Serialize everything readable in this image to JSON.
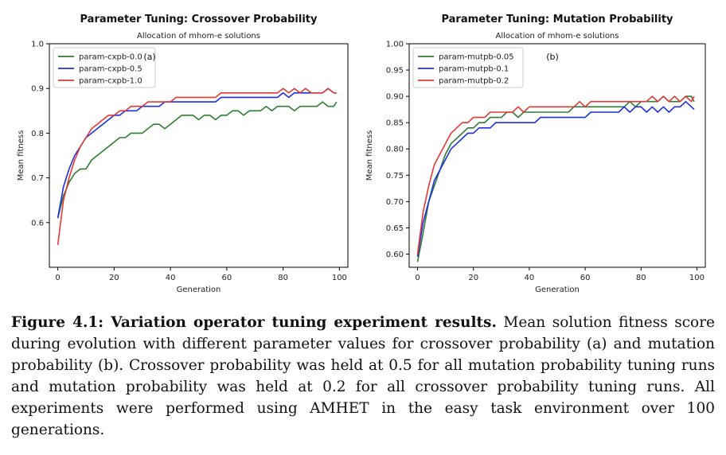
{
  "chart_data": [
    {
      "type": "line",
      "title": "Parameter Tuning: Crossover Probability",
      "subtitle": "Allocation of mhom-e solutions",
      "panel_label": "(a)",
      "xlabel": "Generation",
      "ylabel": "Mean fitness",
      "xlim": [
        -3,
        103
      ],
      "ylim": [
        0.5,
        1.0
      ],
      "xticks": [
        0,
        20,
        40,
        60,
        80,
        100
      ],
      "yticks": [
        0.6,
        0.7,
        0.8,
        0.9,
        1.0
      ],
      "ytick_labels": [
        "0.6",
        "0.7",
        "0.8",
        "0.9",
        "1.0"
      ],
      "legend": "upper-left",
      "grid": false,
      "series": [
        {
          "name": "param-cxpb-0.0",
          "color": "#2e7d32",
          "x": [
            0,
            2,
            4,
            6,
            8,
            10,
            12,
            14,
            16,
            18,
            20,
            22,
            24,
            26,
            28,
            30,
            32,
            34,
            36,
            38,
            40,
            42,
            44,
            46,
            48,
            50,
            52,
            54,
            56,
            58,
            60,
            62,
            64,
            66,
            68,
            70,
            72,
            74,
            76,
            78,
            80,
            82,
            84,
            86,
            88,
            90,
            92,
            94,
            96,
            98,
            99
          ],
          "y": [
            0.61,
            0.66,
            0.69,
            0.71,
            0.72,
            0.72,
            0.74,
            0.75,
            0.76,
            0.77,
            0.78,
            0.79,
            0.79,
            0.8,
            0.8,
            0.8,
            0.81,
            0.82,
            0.82,
            0.81,
            0.82,
            0.83,
            0.84,
            0.84,
            0.84,
            0.83,
            0.84,
            0.84,
            0.83,
            0.84,
            0.84,
            0.85,
            0.85,
            0.84,
            0.85,
            0.85,
            0.85,
            0.86,
            0.85,
            0.86,
            0.86,
            0.86,
            0.85,
            0.86,
            0.86,
            0.86,
            0.86,
            0.87,
            0.86,
            0.86,
            0.87
          ]
        },
        {
          "name": "param-cxpb-0.5",
          "color": "#1f2fe8",
          "x": [
            0,
            2,
            4,
            6,
            8,
            10,
            12,
            14,
            16,
            18,
            20,
            22,
            24,
            26,
            28,
            30,
            32,
            34,
            36,
            38,
            40,
            42,
            44,
            46,
            48,
            50,
            52,
            54,
            56,
            58,
            60,
            62,
            64,
            66,
            68,
            70,
            72,
            74,
            76,
            78,
            80,
            82,
            84,
            86,
            88,
            90,
            92,
            94,
            96,
            98,
            99
          ],
          "y": [
            0.61,
            0.68,
            0.72,
            0.75,
            0.77,
            0.79,
            0.8,
            0.81,
            0.82,
            0.83,
            0.84,
            0.84,
            0.85,
            0.85,
            0.85,
            0.86,
            0.86,
            0.86,
            0.86,
            0.87,
            0.87,
            0.87,
            0.87,
            0.87,
            0.87,
            0.87,
            0.87,
            0.87,
            0.87,
            0.88,
            0.88,
            0.88,
            0.88,
            0.88,
            0.88,
            0.88,
            0.88,
            0.88,
            0.88,
            0.88,
            0.89,
            0.88,
            0.89,
            0.89,
            0.89,
            0.89,
            0.89,
            0.89,
            0.9,
            0.89,
            0.89
          ]
        },
        {
          "name": "param-cxpb-1.0",
          "color": "#e53935",
          "x": [
            0,
            2,
            4,
            6,
            8,
            10,
            12,
            14,
            16,
            18,
            20,
            22,
            24,
            26,
            28,
            30,
            32,
            34,
            36,
            38,
            40,
            42,
            44,
            46,
            48,
            50,
            52,
            54,
            56,
            58,
            60,
            62,
            64,
            66,
            68,
            70,
            72,
            74,
            76,
            78,
            80,
            82,
            84,
            86,
            88,
            90,
            92,
            94,
            96,
            98,
            99
          ],
          "y": [
            0.55,
            0.65,
            0.7,
            0.74,
            0.77,
            0.79,
            0.81,
            0.82,
            0.83,
            0.84,
            0.84,
            0.85,
            0.85,
            0.86,
            0.86,
            0.86,
            0.87,
            0.87,
            0.87,
            0.87,
            0.87,
            0.88,
            0.88,
            0.88,
            0.88,
            0.88,
            0.88,
            0.88,
            0.88,
            0.89,
            0.89,
            0.89,
            0.89,
            0.89,
            0.89,
            0.89,
            0.89,
            0.89,
            0.89,
            0.89,
            0.9,
            0.89,
            0.9,
            0.89,
            0.9,
            0.89,
            0.89,
            0.89,
            0.9,
            0.89,
            0.89
          ]
        }
      ]
    },
    {
      "type": "line",
      "title": "Parameter Tuning: Mutation Probability",
      "subtitle": "Allocation of mhom-e solutions",
      "panel_label": "(b)",
      "xlabel": "Generation",
      "ylabel": "Mean fitness",
      "xlim": [
        -3,
        103
      ],
      "ylim": [
        0.575,
        1.0
      ],
      "xticks": [
        0,
        20,
        40,
        60,
        80,
        100
      ],
      "yticks": [
        0.6,
        0.65,
        0.7,
        0.75,
        0.8,
        0.85,
        0.9,
        0.95,
        1.0
      ],
      "ytick_labels": [
        "0.60",
        "0.65",
        "0.70",
        "0.75",
        "0.80",
        "0.85",
        "0.90",
        "0.95",
        "1.00"
      ],
      "legend": "upper-left",
      "grid": false,
      "series": [
        {
          "name": "param-mutpb-0.05",
          "color": "#2e7d32",
          "x": [
            0,
            2,
            4,
            6,
            8,
            10,
            12,
            14,
            16,
            18,
            20,
            22,
            24,
            26,
            28,
            30,
            32,
            34,
            36,
            38,
            40,
            42,
            44,
            46,
            48,
            50,
            52,
            54,
            56,
            58,
            60,
            62,
            64,
            66,
            68,
            70,
            72,
            74,
            76,
            78,
            80,
            82,
            84,
            86,
            88,
            90,
            92,
            94,
            96,
            98,
            99
          ],
          "y": [
            0.585,
            0.64,
            0.7,
            0.73,
            0.76,
            0.79,
            0.81,
            0.82,
            0.83,
            0.84,
            0.84,
            0.85,
            0.85,
            0.86,
            0.86,
            0.86,
            0.87,
            0.87,
            0.86,
            0.87,
            0.87,
            0.87,
            0.87,
            0.87,
            0.87,
            0.87,
            0.87,
            0.87,
            0.88,
            0.88,
            0.88,
            0.88,
            0.88,
            0.88,
            0.88,
            0.88,
            0.88,
            0.88,
            0.89,
            0.88,
            0.89,
            0.89,
            0.89,
            0.89,
            0.9,
            0.89,
            0.89,
            0.89,
            0.9,
            0.9,
            0.89
          ]
        },
        {
          "name": "param-mutpb-0.1",
          "color": "#1f2fe8",
          "x": [
            0,
            2,
            4,
            6,
            8,
            10,
            12,
            14,
            16,
            18,
            20,
            22,
            24,
            26,
            28,
            30,
            32,
            34,
            36,
            38,
            40,
            42,
            44,
            46,
            48,
            50,
            52,
            54,
            56,
            58,
            60,
            62,
            64,
            66,
            68,
            70,
            72,
            74,
            76,
            78,
            80,
            82,
            84,
            86,
            88,
            90,
            92,
            94,
            96,
            98,
            99
          ],
          "y": [
            0.595,
            0.66,
            0.7,
            0.74,
            0.76,
            0.78,
            0.8,
            0.81,
            0.82,
            0.83,
            0.83,
            0.84,
            0.84,
            0.84,
            0.85,
            0.85,
            0.85,
            0.85,
            0.85,
            0.85,
            0.85,
            0.85,
            0.86,
            0.86,
            0.86,
            0.86,
            0.86,
            0.86,
            0.86,
            0.86,
            0.86,
            0.87,
            0.87,
            0.87,
            0.87,
            0.87,
            0.87,
            0.88,
            0.87,
            0.88,
            0.88,
            0.87,
            0.88,
            0.87,
            0.88,
            0.87,
            0.88,
            0.88,
            0.89,
            0.88,
            0.875
          ]
        },
        {
          "name": "param-mutpb-0.2",
          "color": "#e53935",
          "x": [
            0,
            2,
            4,
            6,
            8,
            10,
            12,
            14,
            16,
            18,
            20,
            22,
            24,
            26,
            28,
            30,
            32,
            34,
            36,
            38,
            40,
            42,
            44,
            46,
            48,
            50,
            52,
            54,
            56,
            58,
            60,
            62,
            64,
            66,
            68,
            70,
            72,
            74,
            76,
            78,
            80,
            82,
            84,
            86,
            88,
            90,
            92,
            94,
            96,
            98,
            99
          ],
          "y": [
            0.6,
            0.68,
            0.73,
            0.77,
            0.79,
            0.81,
            0.83,
            0.84,
            0.85,
            0.85,
            0.86,
            0.86,
            0.86,
            0.87,
            0.87,
            0.87,
            0.87,
            0.87,
            0.88,
            0.87,
            0.88,
            0.88,
            0.88,
            0.88,
            0.88,
            0.88,
            0.88,
            0.88,
            0.88,
            0.89,
            0.88,
            0.89,
            0.89,
            0.89,
            0.89,
            0.89,
            0.89,
            0.89,
            0.89,
            0.89,
            0.89,
            0.89,
            0.9,
            0.89,
            0.9,
            0.89,
            0.9,
            0.89,
            0.9,
            0.89,
            0.9
          ]
        }
      ]
    }
  ],
  "caption": {
    "label": "Figure 4.1: Variation operator tuning experiment results.",
    "text": " Mean solution fitness score during evolution with different parameter values for crossover probability (a) and mutation probability (b). Crossover probability was held at 0.5 for all mutation probability tuning runs and mutation probability was held at 0.2 for all crossover probability tuning runs. All experiments were performed using AMHET in the easy task environment over 100 generations."
  }
}
